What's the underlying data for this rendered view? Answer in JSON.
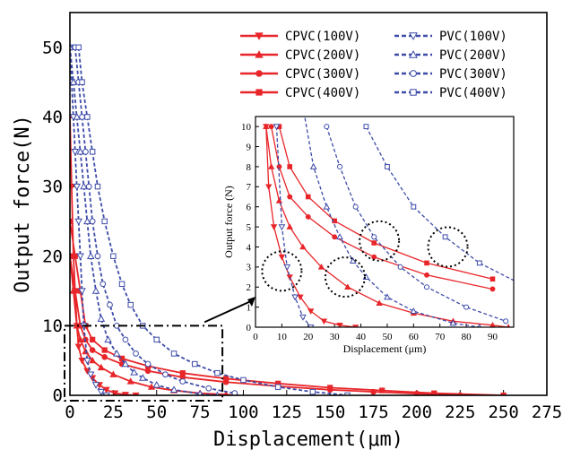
{
  "chart_data": [
    {
      "type": "line",
      "role": "main",
      "title": "",
      "xlabel": "Displacement(μm)",
      "ylabel": "Output force(N)",
      "xlim": [
        0,
        275
      ],
      "ylim": [
        0,
        55
      ],
      "xticks": [
        0,
        25,
        50,
        75,
        100,
        125,
        150,
        175,
        200,
        225,
        250,
        275
      ],
      "yticks": [
        0,
        10,
        20,
        30,
        40,
        50
      ],
      "grid": false,
      "legend_position": "top-right",
      "series": [
        {
          "name": "CPVC(100V)",
          "color": "#e8262a",
          "style": "solid",
          "marker": "triangle-down",
          "x": [
            0,
            1,
            2,
            3,
            4,
            5,
            7,
            10,
            13,
            17,
            21,
            26,
            32,
            38
          ],
          "y": [
            40,
            30,
            20,
            15,
            10,
            7,
            5,
            3.5,
            2.5,
            1.5,
            0.8,
            0.3,
            0.1,
            0
          ]
        },
        {
          "name": "CPVC(200V)",
          "color": "#e8262a",
          "style": "solid",
          "marker": "triangle-up",
          "x": [
            0,
            2,
            4,
            6,
            9,
            13,
            18,
            25,
            35,
            47,
            60,
            75,
            90,
            96
          ],
          "y": [
            20,
            15,
            10,
            8,
            6.3,
            5,
            4,
            3,
            2,
            1.2,
            0.7,
            0.3,
            0.1,
            0
          ]
        },
        {
          "name": "CPVC(300V)",
          "color": "#e8262a",
          "style": "solid",
          "marker": "circle",
          "x": [
            0,
            3,
            6,
            9,
            13,
            20,
            30,
            45,
            65,
            90,
            120,
            150,
            175,
            200,
            225
          ],
          "y": [
            20,
            15,
            10,
            8,
            6.5,
            5.5,
            4.5,
            3.5,
            2.6,
            1.9,
            1.3,
            0.8,
            0.5,
            0.25,
            0
          ]
        },
        {
          "name": "CPVC(400V)",
          "color": "#e8262a",
          "style": "solid",
          "marker": "square",
          "x": [
            0,
            3,
            6,
            9,
            13,
            20,
            30,
            45,
            65,
            90,
            120,
            150,
            180,
            210,
            250
          ],
          "y": [
            25,
            20,
            15,
            10,
            8,
            6.5,
            5.3,
            4.2,
            3.2,
            2.4,
            1.7,
            1.1,
            0.7,
            0.3,
            0
          ]
        },
        {
          "name": "PVC(100V)",
          "color": "#3d4ba8",
          "style": "dashed",
          "marker": "triangle-down-open",
          "x": [
            0,
            1,
            2,
            3,
            4,
            5,
            6,
            7,
            8,
            10,
            12,
            15,
            18,
            21
          ],
          "y": [
            50,
            45,
            40,
            35,
            30,
            25,
            20,
            15,
            10,
            5,
            3,
            1.5,
            0.5,
            0
          ]
        },
        {
          "name": "PVC(200V)",
          "color": "#3d4ba8",
          "style": "dashed",
          "marker": "triangle-up-open",
          "x": [
            0,
            2,
            4,
            6,
            8,
            10,
            12,
            15,
            18,
            22,
            27,
            32,
            37,
            42,
            50,
            60,
            75,
            85
          ],
          "y": [
            50,
            45,
            40,
            35,
            30,
            25,
            20,
            15,
            11,
            8,
            6,
            4.5,
            3.3,
            2.5,
            1.5,
            0.8,
            0.2,
            0
          ]
        },
        {
          "name": "PVC(300V)",
          "color": "#3d4ba8",
          "style": "dashed",
          "marker": "circle-open",
          "x": [
            3,
            5,
            7,
            9,
            11,
            13,
            16,
            19,
            23,
            27,
            32,
            38,
            45,
            55,
            65,
            80,
            95
          ],
          "y": [
            50,
            45,
            40,
            35,
            30,
            25,
            20,
            16,
            13,
            10,
            8,
            6,
            4.5,
            3,
            2,
            1,
            0.3
          ]
        },
        {
          "name": "PVC(400V)",
          "color": "#3d4ba8",
          "style": "dashed",
          "marker": "square-open",
          "x": [
            5,
            7,
            10,
            13,
            16,
            20,
            25,
            30,
            35,
            42,
            50,
            60,
            72,
            85,
            100,
            120,
            140,
            160
          ],
          "y": [
            50,
            45,
            40,
            35,
            30,
            25,
            20,
            16,
            13,
            10,
            8,
            6,
            4.5,
            3.2,
            2.2,
            1.2,
            0.5,
            0
          ]
        }
      ]
    },
    {
      "type": "line",
      "role": "inset",
      "title": "",
      "xlabel": "Displacement (μm)",
      "ylabel": "Output force (N)",
      "xlim": [
        0,
        98
      ],
      "ylim": [
        0,
        10.5
      ],
      "xticks": [
        0,
        10,
        20,
        30,
        40,
        50,
        60,
        70,
        80,
        90
      ],
      "yticks": [
        0,
        1,
        2,
        3,
        4,
        5,
        6,
        7,
        8,
        9,
        10
      ],
      "grid": false,
      "highlight_circles": [
        {
          "x": 10,
          "y": 2.8
        },
        {
          "x": 34,
          "y": 2.5
        },
        {
          "x": 47,
          "y": 4.3
        },
        {
          "x": 73,
          "y": 4.0
        }
      ]
    }
  ],
  "inset_annotation": {
    "box_x": [
      0,
      90
    ],
    "box_y": [
      0,
      10
    ]
  }
}
